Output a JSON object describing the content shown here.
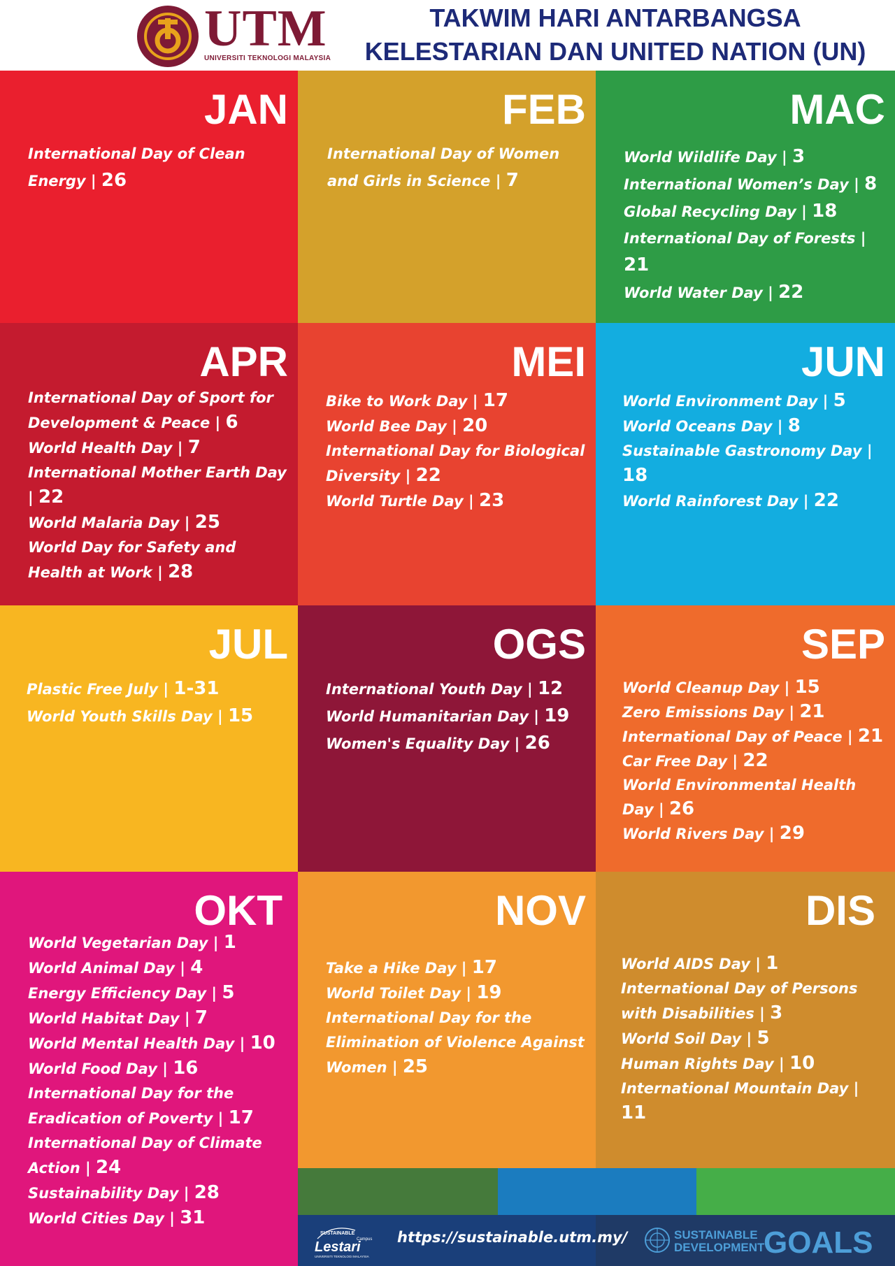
{
  "header": {
    "logo_text": "UTM",
    "logo_subtext": "UNIVERSITI TEKNOLOGI MALAYSIA",
    "title_line1": "TAKWIM HARI ANTARBANGSA",
    "title_line2": "KELESTARIAN DAN UNITED NATION (UN)"
  },
  "colors": {
    "jan": "#ea1f2e",
    "feb": "#d4a12b",
    "mac": "#2e9c46",
    "apr": "#c41b2f",
    "mei": "#e84330",
    "jun": "#13ade0",
    "jul": "#f8b621",
    "ogs": "#8e1638",
    "sep": "#ef6b2c",
    "okt": "#e0167c",
    "nov": "#f2982f",
    "dis": "#cf8c2d",
    "bar1": "#457a3b",
    "bar2": "#1b7cbf",
    "bar3": "#45ae48",
    "footer_left": "#1a3f7a",
    "footer_right": "#1f3a66"
  },
  "months": {
    "jan": {
      "name": "JAN",
      "items": [
        {
          "label": "International Day of Clean Energy",
          "day": "26"
        }
      ]
    },
    "feb": {
      "name": "FEB",
      "items": [
        {
          "label": "International Day of Women and Girls in Science",
          "day": "7"
        }
      ]
    },
    "mac": {
      "name": "MAC",
      "items": [
        {
          "label": "World Wildlife Day",
          "day": "3"
        },
        {
          "label": "International Women’s Day",
          "day": "8"
        },
        {
          "label": "Global Recycling Day",
          "day": "18"
        },
        {
          "label": "International Day of Forests",
          "day": "21"
        },
        {
          "label": "World Water Day",
          "day": "22"
        }
      ]
    },
    "apr": {
      "name": "APR",
      "items": [
        {
          "label": "International Day of Sport for Development & Peace",
          "day": "6"
        },
        {
          "label": "World Health Day",
          "day": "7"
        },
        {
          "label": "International Mother Earth Day",
          "day": "22"
        },
        {
          "label": "World Malaria Day",
          "day": "25"
        },
        {
          "label": "World Day for Safety and Health at Work",
          "day": "28"
        }
      ]
    },
    "mei": {
      "name": "MEI",
      "items": [
        {
          "label": "Bike to Work Day",
          "day": "17"
        },
        {
          "label": "World Bee Day",
          "day": "20"
        },
        {
          "label": "International Day for Biological Diversity",
          "day": "22"
        },
        {
          "label": "World Turtle Day",
          "day": "23"
        }
      ]
    },
    "jun": {
      "name": "JUN",
      "items": [
        {
          "label": "World Environment Day",
          "day": "5"
        },
        {
          "label": "World Oceans Day",
          "day": "8"
        },
        {
          "label": "Sustainable Gastronomy Day",
          "day": "18"
        },
        {
          "label": "World Rainforest Day",
          "day": "22"
        }
      ]
    },
    "jul": {
      "name": "JUL",
      "items": [
        {
          "label": "Plastic Free July",
          "day": "1-31"
        },
        {
          "label": "World Youth Skills Day",
          "day": "15"
        }
      ]
    },
    "ogs": {
      "name": "OGS",
      "items": [
        {
          "label": "International Youth Day",
          "day": "12"
        },
        {
          "label": "World Humanitarian Day",
          "day": "19"
        },
        {
          "label": "Women's Equality Day",
          "day": "26"
        }
      ]
    },
    "sep": {
      "name": "SEP",
      "items": [
        {
          "label": "World Cleanup Day",
          "day": "15"
        },
        {
          "label": "Zero Emissions Day",
          "day": "21"
        },
        {
          "label": "International Day of Peace",
          "day": "21"
        },
        {
          "label": "Car Free Day",
          "day": "22"
        },
        {
          "label": "World Environmental Health Day",
          "day": "26"
        },
        {
          "label": "World Rivers Day",
          "day": "29"
        }
      ]
    },
    "okt": {
      "name": "OKT",
      "items": [
        {
          "label": "World Vegetarian Day",
          "day": "1"
        },
        {
          "label": "World Animal Day",
          "day": "4"
        },
        {
          "label": "Energy Efficiency Day",
          "day": "5"
        },
        {
          "label": "World Habitat Day",
          "day": "7"
        },
        {
          "label": "World Mental Health Day",
          "day": "10"
        },
        {
          "label": "World Food Day",
          "day": "16"
        },
        {
          "label": "International Day for the Eradication of Poverty",
          "day": "17"
        },
        {
          "label": "International Day of Climate Action",
          "day": "24"
        },
        {
          "label": "Sustainability Day",
          "day": "28"
        },
        {
          "label": "World Cities Day",
          "day": "31"
        }
      ]
    },
    "nov": {
      "name": "NOV",
      "items": [
        {
          "label": "Take a Hike Day",
          "day": "17"
        },
        {
          "label": "World Toilet Day",
          "day": "19"
        },
        {
          "label": "International Day for the Elimination of Violence Against Women",
          "day": "25"
        }
      ]
    },
    "dis": {
      "name": "DIS",
      "items": [
        {
          "label": "World AIDS Day",
          "day": "1"
        },
        {
          "label": "International Day of Persons with Disabilities",
          "day": "3"
        },
        {
          "label": "World Soil Day",
          "day": "5"
        },
        {
          "label": "Human Rights Day",
          "day": "10"
        },
        {
          "label": "International Mountain Day",
          "day": "11"
        }
      ]
    }
  },
  "footer": {
    "url": "https://sustainable.utm.my/",
    "lestari_top": "SUSTAINABLE",
    "lestari_campus": "Campus",
    "lestari_main": "Lestari",
    "lestari_sub": "UNIVERSITI TEKNOLOGI MALAYSIA",
    "sdg_line1": "SUSTAINABLE",
    "sdg_line2": "DEVELOPMENT",
    "sdg_goals": "GOALS"
  }
}
